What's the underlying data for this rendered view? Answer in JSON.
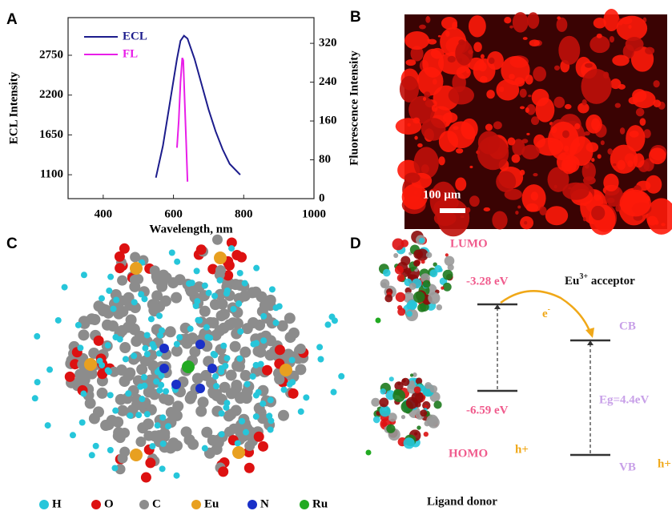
{
  "panel_labels": [
    "A",
    "B",
    "C",
    "D"
  ],
  "chart_data": {
    "type": "line",
    "x_label": "Wavelength, nm",
    "y_label": "ECL Intensity",
    "y2_label": "Fluorescence Intensity",
    "xlim": [
      300,
      1000
    ],
    "xticks": [
      400,
      600,
      800,
      1000
    ],
    "ylim": [
      770,
      3270
    ],
    "yticks": [
      1100,
      1650,
      2200,
      2750
    ],
    "y2lim": [
      0,
      373
    ],
    "y2ticks": [
      0,
      80,
      160,
      240,
      320
    ],
    "legend": "upper left",
    "series": [
      {
        "name": "ECL",
        "color": "#1c1c8c",
        "x": [
          550,
          570,
          590,
          610,
          620,
          630,
          640,
          660,
          680,
          700,
          720,
          740,
          760,
          790
        ],
        "values": [
          1060,
          1500,
          2100,
          2700,
          2950,
          3020,
          2980,
          2700,
          2350,
          2000,
          1700,
          1450,
          1250,
          1100
        ]
      },
      {
        "name": "FL",
        "color": "#e81ee8",
        "axis": "y2",
        "x": [
          610,
          615,
          620,
          625,
          628,
          632,
          636,
          640
        ],
        "values": [
          105,
          160,
          240,
          290,
          285,
          200,
          120,
          35
        ]
      }
    ]
  },
  "panel_b": {
    "scale_bar": "100 µm"
  },
  "panel_c": {
    "legend": [
      "H",
      "O",
      "C",
      "Eu",
      "N",
      "Ru"
    ]
  },
  "panel_d": {
    "lumo": "LUMO",
    "lumo_energy": "-3.28 eV",
    "acceptor": [
      "Eu",
      "3+",
      " acceptor"
    ],
    "electron": [
      "e",
      "-"
    ],
    "cb": "CB",
    "gap": "Eg=4.4eV",
    "homo_energy": "-6.59 eV",
    "homo": "HOMO",
    "hole": "h+",
    "vb": "VB",
    "vb_hole": "h+",
    "donor": "Ligand donor"
  }
}
